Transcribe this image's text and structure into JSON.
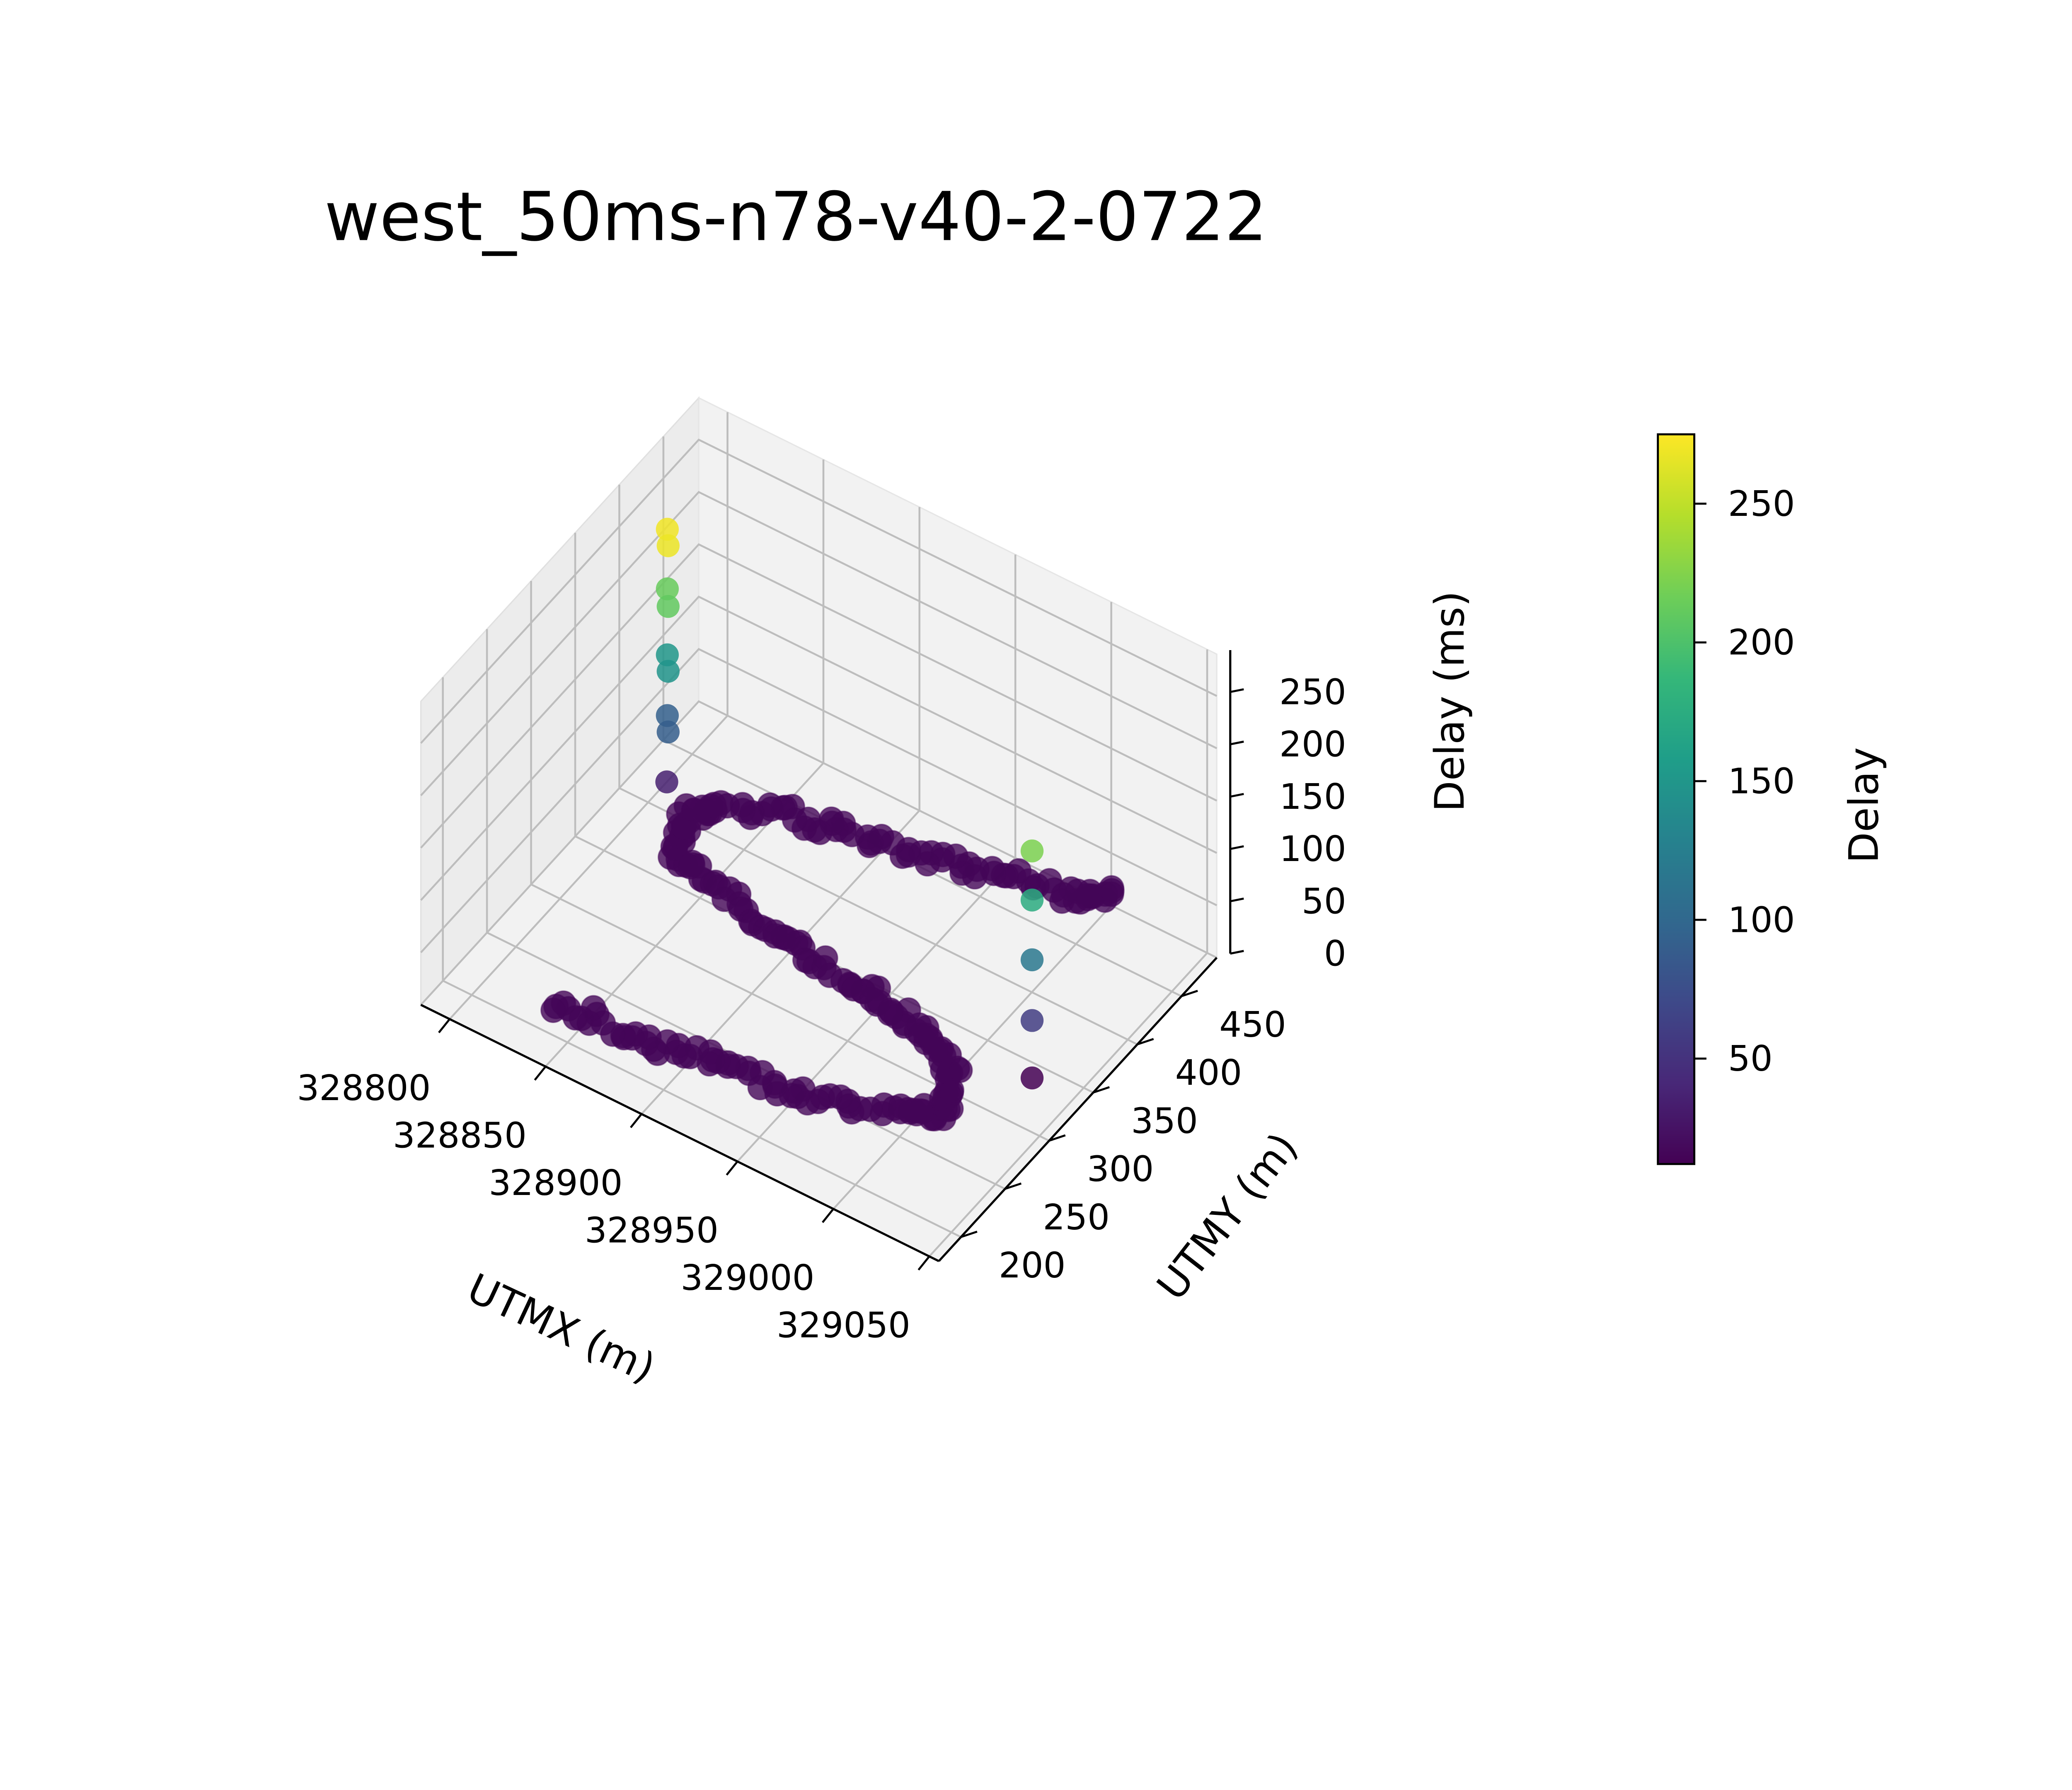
{
  "chart_data": {
    "type": "scatter",
    "title": "west_50ms-n78-v40-2-0722",
    "xlabel": "UTMX (m)",
    "ylabel": "UTMY (m)",
    "zlabel": "Delay (ms)",
    "x_ticks": [
      "328800",
      "328850",
      "328900",
      "328950",
      "329000",
      "329050"
    ],
    "y_ticks": [
      "200",
      "250",
      "300",
      "350",
      "400",
      "450"
    ],
    "z_ticks": [
      "0",
      "50",
      "100",
      "150",
      "200",
      "250"
    ],
    "xlim": [
      328785,
      329055
    ],
    "ylim": [
      175,
      490
    ],
    "zlim": [
      0,
      290
    ],
    "grid": true,
    "colorbar": {
      "label": "Delay",
      "colormap": "viridis",
      "range": [
        12,
        275
      ],
      "ticks": [
        "50",
        "100",
        "150",
        "200",
        "250"
      ]
    },
    "colormap_stops": [
      "#440154",
      "#482878",
      "#3e4989",
      "#31688e",
      "#26828e",
      "#1f9e89",
      "#35b779",
      "#6ece58",
      "#b5de2b",
      "#fde725"
    ],
    "trajectory": {
      "description_points_xy": [
        [
          328840,
          205
        ],
        [
          328880,
          213
        ],
        [
          328920,
          222
        ],
        [
          328960,
          232
        ],
        [
          329000,
          248
        ],
        [
          329015,
          270
        ],
        [
          329005,
          300
        ],
        [
          328980,
          318
        ],
        [
          328950,
          325
        ],
        [
          328910,
          333
        ],
        [
          328870,
          343
        ],
        [
          328835,
          357
        ],
        [
          328825,
          385
        ],
        [
          328835,
          410
        ],
        [
          328870,
          428
        ],
        [
          328910,
          440
        ],
        [
          328950,
          452
        ],
        [
          328990,
          468
        ],
        [
          329005,
          485
        ]
      ],
      "delay": 15
    },
    "outliers": [
      {
        "x": 328810,
        "y": 400,
        "z": 270
      },
      {
        "x": 328815,
        "y": 390,
        "z": 268
      },
      {
        "x": 328810,
        "y": 400,
        "z": 213
      },
      {
        "x": 328815,
        "y": 390,
        "z": 210
      },
      {
        "x": 328810,
        "y": 400,
        "z": 150
      },
      {
        "x": 328815,
        "y": 390,
        "z": 148
      },
      {
        "x": 328810,
        "y": 400,
        "z": 92
      },
      {
        "x": 328815,
        "y": 390,
        "z": 90
      },
      {
        "x": 328812,
        "y": 395,
        "z": 35
      },
      {
        "x": 329030,
        "y": 335,
        "z": 222
      },
      {
        "x": 329030,
        "y": 335,
        "z": 175
      },
      {
        "x": 329030,
        "y": 335,
        "z": 118
      },
      {
        "x": 329030,
        "y": 335,
        "z": 60
      },
      {
        "x": 329030,
        "y": 335,
        "z": 5
      }
    ]
  }
}
